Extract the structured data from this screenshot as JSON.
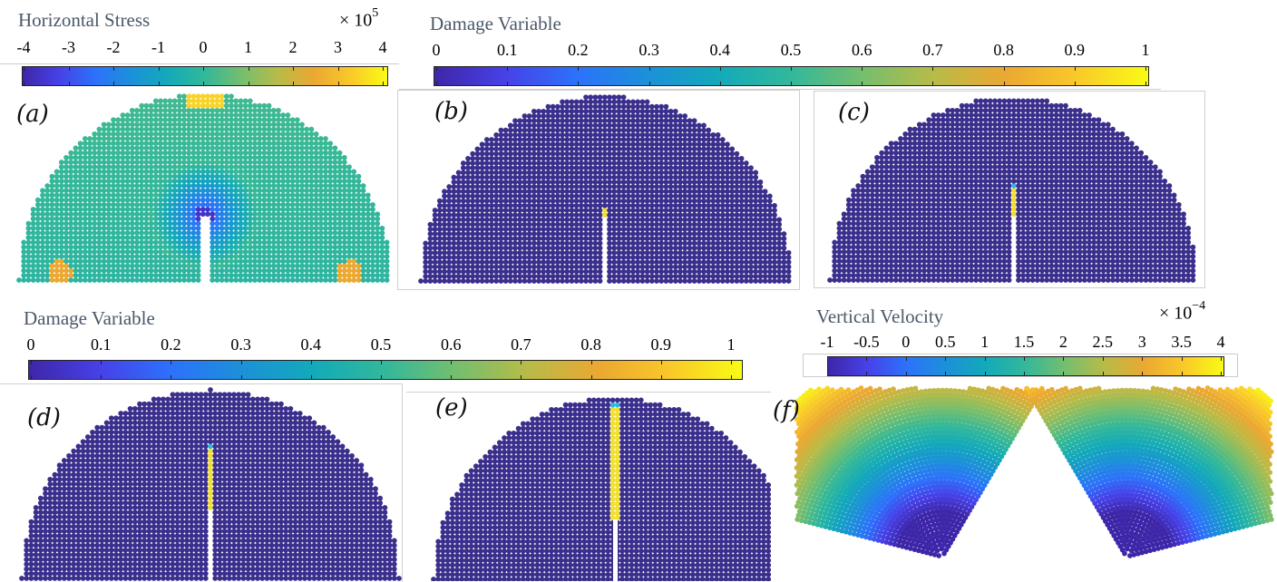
{
  "colorbars": {
    "stress": {
      "title": "Horizontal Stress",
      "exponent_base": "× 10",
      "exponent_power": "5",
      "ticks": [
        "-4",
        "-3",
        "-2",
        "-1",
        "0",
        "1",
        "2",
        "3",
        "4"
      ]
    },
    "damage_top": {
      "title": "Damage Variable",
      "ticks": [
        "0",
        "0.1",
        "0.2",
        "0.3",
        "0.4",
        "0.5",
        "0.6",
        "0.7",
        "0.8",
        "0.9",
        "1"
      ]
    },
    "damage_bottom": {
      "title": "Damage Variable",
      "ticks": [
        "0",
        "0.1",
        "0.2",
        "0.3",
        "0.4",
        "0.5",
        "0.6",
        "0.7",
        "0.8",
        "0.9",
        "1"
      ]
    },
    "velocity": {
      "title": "Vertical Velocity",
      "exponent_base": "× 10",
      "exponent_power": "−4",
      "ticks": [
        "-1",
        "-0.5",
        "0",
        "0.5",
        "1",
        "1.5",
        "2",
        "2.5",
        "3",
        "3.5",
        "4"
      ]
    }
  },
  "panels": {
    "a": "(a)",
    "b": "(b)",
    "c": "(c)",
    "d": "(d)",
    "e": "(e)",
    "f": "(f)"
  },
  "colors": {
    "base_particle": "#3a2f8c",
    "stress_field": "#3cb89c",
    "crack_yellow": "#f2e031",
    "crack_tip": "#2fb7e0"
  },
  "chart_data": [
    {
      "type": "scatter",
      "panel": "(a)",
      "title": "Horizontal Stress",
      "colorbar_range": [
        -4,
        4
      ],
      "colorbar_ticks": [
        -4,
        -3,
        -2,
        -1,
        0,
        1,
        2,
        3,
        4
      ],
      "scale": "× 10^5",
      "notch_fraction_of_radius": 0.35
    },
    {
      "type": "scatter",
      "panel": "(b)",
      "title": "Damage Variable",
      "colorbar_range": [
        0,
        1
      ],
      "colorbar_ticks": [
        0,
        0.1,
        0.2,
        0.3,
        0.4,
        0.5,
        0.6,
        0.7,
        0.8,
        0.9,
        1
      ],
      "notch_fraction_of_radius": 0.35,
      "crack_fraction_of_radius": 0.05
    },
    {
      "type": "scatter",
      "panel": "(c)",
      "title": "Damage Variable",
      "colorbar_range": [
        0,
        1
      ],
      "notch_fraction_of_radius": 0.35,
      "crack_fraction_of_radius": 0.18
    },
    {
      "type": "scatter",
      "panel": "(d)",
      "title": "Damage Variable",
      "colorbar_range": [
        0,
        1
      ],
      "colorbar_ticks": [
        0,
        0.1,
        0.2,
        0.3,
        0.4,
        0.5,
        0.6,
        0.7,
        0.8,
        0.9,
        1
      ],
      "notch_fraction_of_radius": 0.35,
      "crack_fraction_of_radius": 0.35
    },
    {
      "type": "scatter",
      "panel": "(e)",
      "title": "Damage Variable",
      "colorbar_range": [
        0,
        1
      ],
      "notch_fraction_of_radius": 0.0,
      "crack_fraction_of_radius": 0.9
    },
    {
      "type": "scatter",
      "panel": "(f)",
      "title": "Vertical Velocity",
      "colorbar_range": [
        -1,
        4
      ],
      "colorbar_ticks": [
        -1,
        -0.5,
        0,
        0.5,
        1,
        1.5,
        2,
        2.5,
        3,
        3.5,
        4
      ],
      "scale": "× 10^-4",
      "split_opening_angle_deg": 56
    }
  ]
}
